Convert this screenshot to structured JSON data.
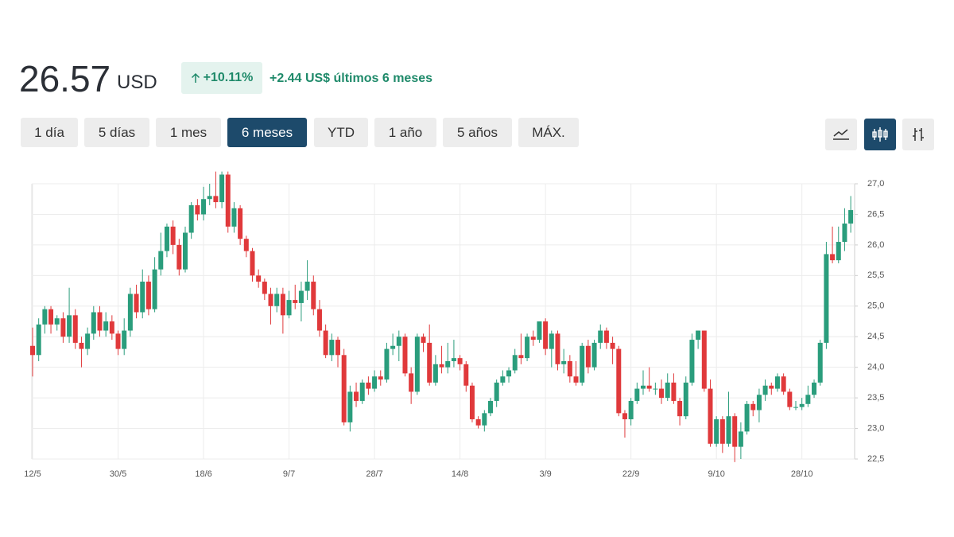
{
  "header": {
    "price": "26.57",
    "currency": "USD",
    "change_percent": "+10.11%",
    "change": "+2.44",
    "change_label": "US$ últimos 6 meses"
  },
  "ranges": [
    "1 día",
    "5 días",
    "1 mes",
    "6 meses",
    "YTD",
    "1 año",
    "5 años",
    "MÁX."
  ],
  "chart_data": {
    "type": "candlestick",
    "up_color": "#2a9d7c",
    "down_color": "#e0393b",
    "grid": true,
    "ylim": [
      22.5,
      27.0
    ],
    "yticks": [
      {
        "value": 22.5,
        "label": "22,5"
      },
      {
        "value": 23.0,
        "label": "23,0"
      },
      {
        "value": 23.5,
        "label": "23,5"
      },
      {
        "value": 24.0,
        "label": "24,0"
      },
      {
        "value": 24.5,
        "label": "24,5"
      },
      {
        "value": 25.0,
        "label": "25,0"
      },
      {
        "value": 25.5,
        "label": "25,5"
      },
      {
        "value": 26.0,
        "label": "26,0"
      },
      {
        "value": 26.5,
        "label": "26,5"
      },
      {
        "value": 27.0,
        "label": "27,0"
      }
    ],
    "categories": [
      "12/5",
      null,
      null,
      null,
      null,
      null,
      null,
      null,
      null,
      null,
      null,
      null,
      null,
      null,
      "30/5",
      null,
      null,
      null,
      null,
      null,
      null,
      null,
      null,
      null,
      null,
      null,
      null,
      null,
      "18/6",
      null,
      null,
      null,
      null,
      null,
      null,
      null,
      null,
      null,
      null,
      null,
      null,
      null,
      "9/7",
      null,
      null,
      null,
      null,
      null,
      null,
      null,
      null,
      null,
      null,
      null,
      null,
      null,
      "28/7",
      null,
      null,
      null,
      null,
      null,
      null,
      null,
      null,
      null,
      null,
      null,
      null,
      null,
      "14/8",
      null,
      null,
      null,
      null,
      null,
      null,
      null,
      null,
      null,
      null,
      null,
      null,
      null,
      "3/9",
      null,
      null,
      null,
      null,
      null,
      null,
      null,
      null,
      null,
      null,
      null,
      null,
      null,
      "22/9",
      null,
      null,
      null,
      null,
      null,
      null,
      null,
      null,
      null,
      null,
      null,
      null,
      null,
      "9/10",
      null,
      null,
      null,
      null,
      null,
      null,
      null,
      null,
      null,
      null,
      null,
      null,
      null,
      "28/10",
      null,
      null,
      null,
      null,
      null,
      null,
      null,
      null
    ],
    "candles": [
      [
        24.35,
        24.65,
        23.85,
        24.2
      ],
      [
        24.2,
        24.8,
        24.1,
        24.7
      ],
      [
        24.7,
        25.0,
        24.55,
        24.95
      ],
      [
        24.95,
        25.0,
        24.55,
        24.7
      ],
      [
        24.7,
        24.85,
        24.6,
        24.8
      ],
      [
        24.8,
        24.9,
        24.4,
        24.5
      ],
      [
        24.5,
        25.3,
        24.4,
        24.85
      ],
      [
        24.85,
        24.95,
        24.3,
        24.4
      ],
      [
        24.4,
        24.5,
        24.0,
        24.3
      ],
      [
        24.3,
        24.65,
        24.2,
        24.55
      ],
      [
        24.55,
        25.0,
        24.45,
        24.9
      ],
      [
        24.9,
        25.0,
        24.5,
        24.6
      ],
      [
        24.6,
        24.9,
        24.5,
        24.75
      ],
      [
        24.75,
        24.85,
        24.45,
        24.55
      ],
      [
        24.55,
        24.6,
        24.2,
        24.3
      ],
      [
        24.3,
        24.8,
        24.2,
        24.6
      ],
      [
        24.6,
        25.3,
        24.5,
        25.2
      ],
      [
        25.2,
        25.35,
        24.8,
        24.9
      ],
      [
        24.9,
        25.6,
        24.8,
        25.4
      ],
      [
        25.4,
        25.5,
        24.85,
        24.95
      ],
      [
        24.95,
        25.8,
        24.9,
        25.6
      ],
      [
        25.6,
        26.2,
        25.5,
        25.9
      ],
      [
        25.9,
        26.35,
        25.8,
        26.3
      ],
      [
        26.3,
        26.4,
        25.85,
        26.0
      ],
      [
        26.0,
        26.1,
        25.5,
        25.6
      ],
      [
        25.6,
        26.3,
        25.55,
        26.2
      ],
      [
        26.2,
        26.7,
        26.1,
        26.65
      ],
      [
        26.65,
        26.75,
        26.4,
        26.5
      ],
      [
        26.5,
        26.95,
        26.4,
        26.75
      ],
      [
        26.75,
        27.0,
        26.65,
        26.8
      ],
      [
        26.8,
        27.2,
        26.6,
        26.7
      ],
      [
        26.7,
        27.2,
        26.6,
        27.15
      ],
      [
        27.15,
        27.2,
        26.2,
        26.3
      ],
      [
        26.3,
        26.7,
        26.2,
        26.6
      ],
      [
        26.6,
        26.65,
        26.0,
        26.1
      ],
      [
        26.1,
        26.15,
        25.8,
        25.9
      ],
      [
        25.9,
        25.95,
        25.4,
        25.5
      ],
      [
        25.5,
        25.6,
        25.3,
        25.4
      ],
      [
        25.4,
        25.45,
        25.1,
        25.2
      ],
      [
        25.2,
        25.3,
        24.7,
        25.0
      ],
      [
        25.0,
        25.3,
        24.9,
        25.2
      ],
      [
        25.2,
        25.3,
        24.55,
        24.85
      ],
      [
        24.85,
        25.25,
        24.8,
        25.1
      ],
      [
        25.1,
        25.35,
        24.95,
        25.05
      ],
      [
        25.05,
        25.4,
        24.75,
        25.25
      ],
      [
        25.25,
        25.75,
        25.1,
        25.4
      ],
      [
        25.4,
        25.5,
        24.85,
        24.95
      ],
      [
        24.95,
        25.1,
        24.5,
        24.6
      ],
      [
        24.6,
        24.7,
        24.15,
        24.2
      ],
      [
        24.2,
        24.55,
        24.1,
        24.45
      ],
      [
        24.45,
        24.5,
        24.0,
        24.2
      ],
      [
        24.2,
        24.3,
        23.05,
        23.1
      ],
      [
        23.1,
        23.7,
        22.95,
        23.6
      ],
      [
        23.6,
        23.75,
        23.35,
        23.45
      ],
      [
        23.45,
        23.8,
        23.4,
        23.75
      ],
      [
        23.75,
        23.85,
        23.55,
        23.65
      ],
      [
        23.65,
        23.95,
        23.6,
        23.85
      ],
      [
        23.85,
        23.95,
        23.7,
        23.8
      ],
      [
        23.8,
        24.4,
        23.75,
        24.3
      ],
      [
        24.3,
        24.55,
        24.2,
        24.35
      ],
      [
        24.35,
        24.6,
        24.1,
        24.5
      ],
      [
        24.5,
        24.55,
        23.85,
        23.9
      ],
      [
        23.9,
        24.0,
        23.4,
        23.6
      ],
      [
        23.6,
        24.55,
        23.55,
        24.5
      ],
      [
        24.5,
        24.55,
        24.25,
        24.4
      ],
      [
        24.4,
        24.7,
        23.7,
        23.75
      ],
      [
        23.75,
        24.2,
        23.7,
        24.05
      ],
      [
        24.05,
        24.35,
        23.9,
        24.0
      ],
      [
        24.0,
        24.4,
        23.9,
        24.1
      ],
      [
        24.1,
        24.45,
        24.0,
        24.15
      ],
      [
        24.15,
        24.2,
        23.95,
        24.05
      ],
      [
        24.05,
        24.1,
        23.6,
        23.7
      ],
      [
        23.7,
        23.75,
        23.1,
        23.15
      ],
      [
        23.15,
        23.2,
        23.0,
        23.05
      ],
      [
        23.05,
        23.3,
        22.95,
        23.25
      ],
      [
        23.25,
        23.5,
        23.2,
        23.45
      ],
      [
        23.45,
        23.8,
        23.35,
        23.75
      ],
      [
        23.75,
        23.95,
        23.7,
        23.85
      ],
      [
        23.85,
        24.0,
        23.75,
        23.95
      ],
      [
        23.95,
        24.3,
        23.9,
        24.2
      ],
      [
        24.2,
        24.55,
        24.05,
        24.15
      ],
      [
        24.15,
        24.55,
        24.1,
        24.5
      ],
      [
        24.5,
        24.6,
        24.35,
        24.45
      ],
      [
        24.45,
        24.75,
        24.4,
        24.75
      ],
      [
        24.75,
        24.8,
        24.2,
        24.3
      ],
      [
        24.3,
        24.6,
        24.0,
        24.55
      ],
      [
        24.55,
        24.6,
        23.95,
        24.05
      ],
      [
        24.05,
        24.3,
        23.9,
        24.1
      ],
      [
        24.1,
        24.2,
        23.75,
        23.85
      ],
      [
        23.85,
        24.1,
        23.7,
        23.75
      ],
      [
        23.75,
        24.4,
        23.7,
        24.35
      ],
      [
        24.35,
        24.45,
        23.9,
        24.0
      ],
      [
        24.0,
        24.45,
        23.95,
        24.4
      ],
      [
        24.4,
        24.7,
        24.3,
        24.6
      ],
      [
        24.6,
        24.65,
        24.3,
        24.4
      ],
      [
        24.4,
        24.5,
        24.05,
        24.3
      ],
      [
        24.3,
        24.35,
        23.2,
        23.25
      ],
      [
        23.25,
        23.3,
        22.85,
        23.15
      ],
      [
        23.15,
        23.5,
        23.05,
        23.45
      ],
      [
        23.45,
        23.75,
        23.4,
        23.65
      ],
      [
        23.65,
        23.95,
        23.55,
        23.7
      ],
      [
        23.7,
        24.0,
        23.6,
        23.65
      ],
      [
        23.65,
        23.75,
        23.55,
        23.65
      ],
      [
        23.65,
        23.8,
        23.4,
        23.5
      ],
      [
        23.5,
        23.9,
        23.45,
        23.75
      ],
      [
        23.75,
        23.9,
        23.4,
        23.45
      ],
      [
        23.45,
        23.5,
        23.05,
        23.2
      ],
      [
        23.2,
        23.85,
        23.15,
        23.75
      ],
      [
        23.75,
        24.55,
        23.7,
        24.45
      ],
      [
        24.45,
        24.6,
        24.3,
        24.6
      ],
      [
        24.6,
        24.6,
        23.6,
        23.65
      ],
      [
        23.65,
        23.8,
        22.7,
        22.75
      ],
      [
        22.75,
        23.2,
        22.7,
        23.15
      ],
      [
        23.15,
        23.2,
        22.6,
        22.75
      ],
      [
        22.75,
        23.6,
        22.7,
        23.2
      ],
      [
        23.2,
        23.25,
        22.45,
        22.7
      ],
      [
        22.7,
        23.1,
        22.5,
        22.95
      ],
      [
        22.95,
        23.45,
        22.9,
        23.4
      ],
      [
        23.4,
        23.45,
        23.2,
        23.3
      ],
      [
        23.3,
        23.65,
        23.1,
        23.55
      ],
      [
        23.55,
        23.8,
        23.45,
        23.7
      ],
      [
        23.7,
        23.75,
        23.55,
        23.65
      ],
      [
        23.65,
        23.9,
        23.6,
        23.85
      ],
      [
        23.85,
        23.9,
        23.55,
        23.6
      ],
      [
        23.6,
        23.65,
        23.3,
        23.35
      ],
      [
        23.35,
        23.45,
        23.3,
        23.35
      ],
      [
        23.35,
        23.5,
        23.3,
        23.4
      ],
      [
        23.4,
        23.7,
        23.35,
        23.55
      ],
      [
        23.55,
        23.8,
        23.5,
        23.75
      ],
      [
        23.75,
        24.45,
        23.7,
        24.4
      ],
      [
        24.4,
        26.05,
        24.3,
        25.85
      ],
      [
        25.85,
        26.3,
        25.7,
        25.75
      ],
      [
        25.75,
        26.3,
        25.7,
        26.05
      ],
      [
        26.05,
        26.6,
        25.9,
        26.35
      ],
      [
        26.35,
        26.8,
        26.2,
        26.57
      ]
    ]
  }
}
